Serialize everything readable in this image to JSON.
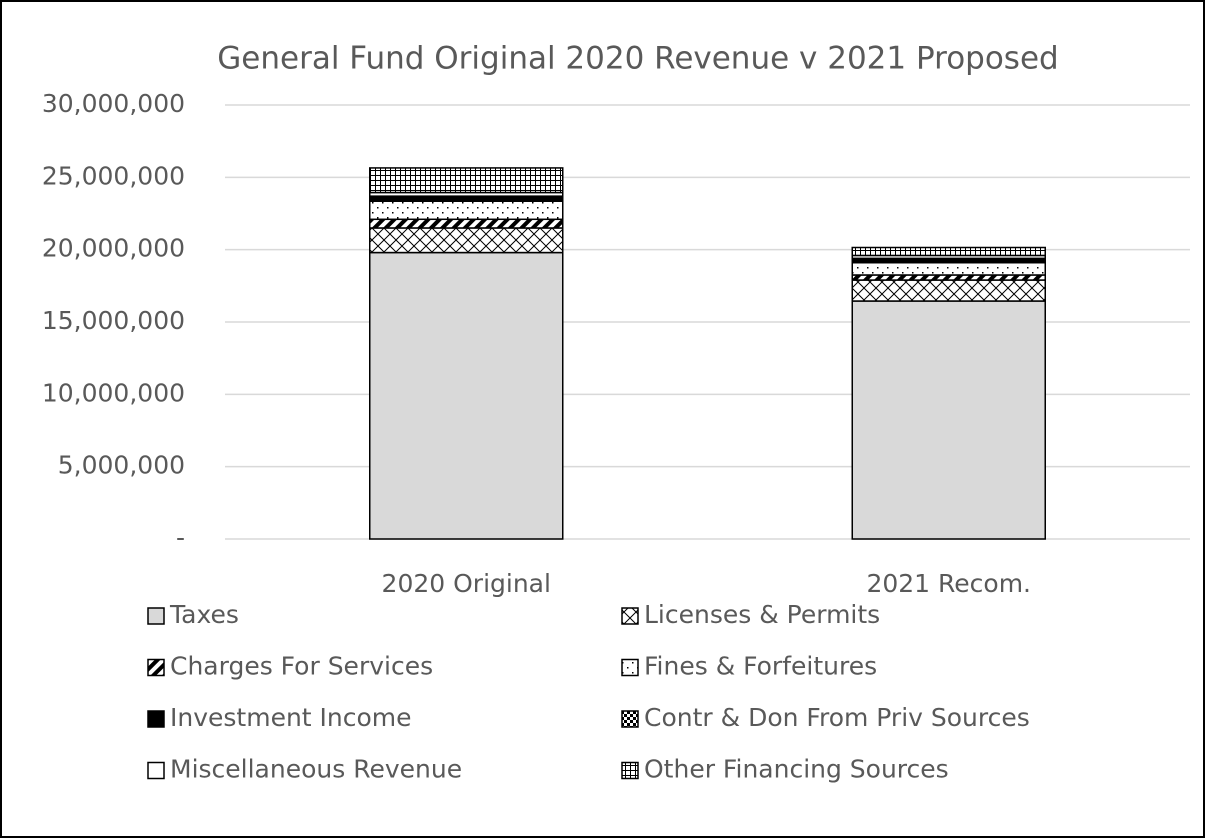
{
  "chart_data": {
    "type": "stacked_bar",
    "title": "General Fund Original 2020 Revenue v 2021 Proposed",
    "categories": [
      "2020 Original",
      "2021 Recom."
    ],
    "series": [
      {
        "name": "Taxes",
        "color": "#d9d9d9",
        "pattern": "solid",
        "values": [
          19800000,
          16450000
        ]
      },
      {
        "name": "Licenses & Permits",
        "color": "#000000",
        "pattern": "crosshatch",
        "values": [
          1700000,
          1450000
        ]
      },
      {
        "name": "Charges For Services",
        "color": "#000000",
        "pattern": "stripes",
        "values": [
          600000,
          350000
        ]
      },
      {
        "name": "Fines & Forfeitures",
        "color": "#000000",
        "pattern": "dots",
        "values": [
          1250000,
          850000
        ]
      },
      {
        "name": "Investment Income",
        "color": "#000000",
        "pattern": "solid",
        "values": [
          300000,
          250000
        ]
      },
      {
        "name": "Contr & Don From Priv Sources",
        "color": "#000000",
        "pattern": "checker",
        "values": [
          50000,
          50000
        ]
      },
      {
        "name": "Miscellaneous Revenue",
        "color": "#ffffff",
        "pattern": "solid",
        "values": [
          250000,
          200000
        ]
      },
      {
        "name": "Other Financing Sources",
        "color": "#000000",
        "pattern": "grid",
        "values": [
          1700000,
          550000
        ]
      }
    ],
    "ylim": [
      0,
      30000000
    ],
    "yticks": [
      {
        "value": 0,
        "label": "-"
      },
      {
        "value": 5000000,
        "label": "5,000,000"
      },
      {
        "value": 10000000,
        "label": "10,000,000"
      },
      {
        "value": 15000000,
        "label": "15,000,000"
      },
      {
        "value": 20000000,
        "label": "20,000,000"
      },
      {
        "value": 25000000,
        "label": "25,000,000"
      },
      {
        "value": 30000000,
        "label": "30,000,000"
      }
    ],
    "grid": true,
    "legend": "bottom"
  }
}
